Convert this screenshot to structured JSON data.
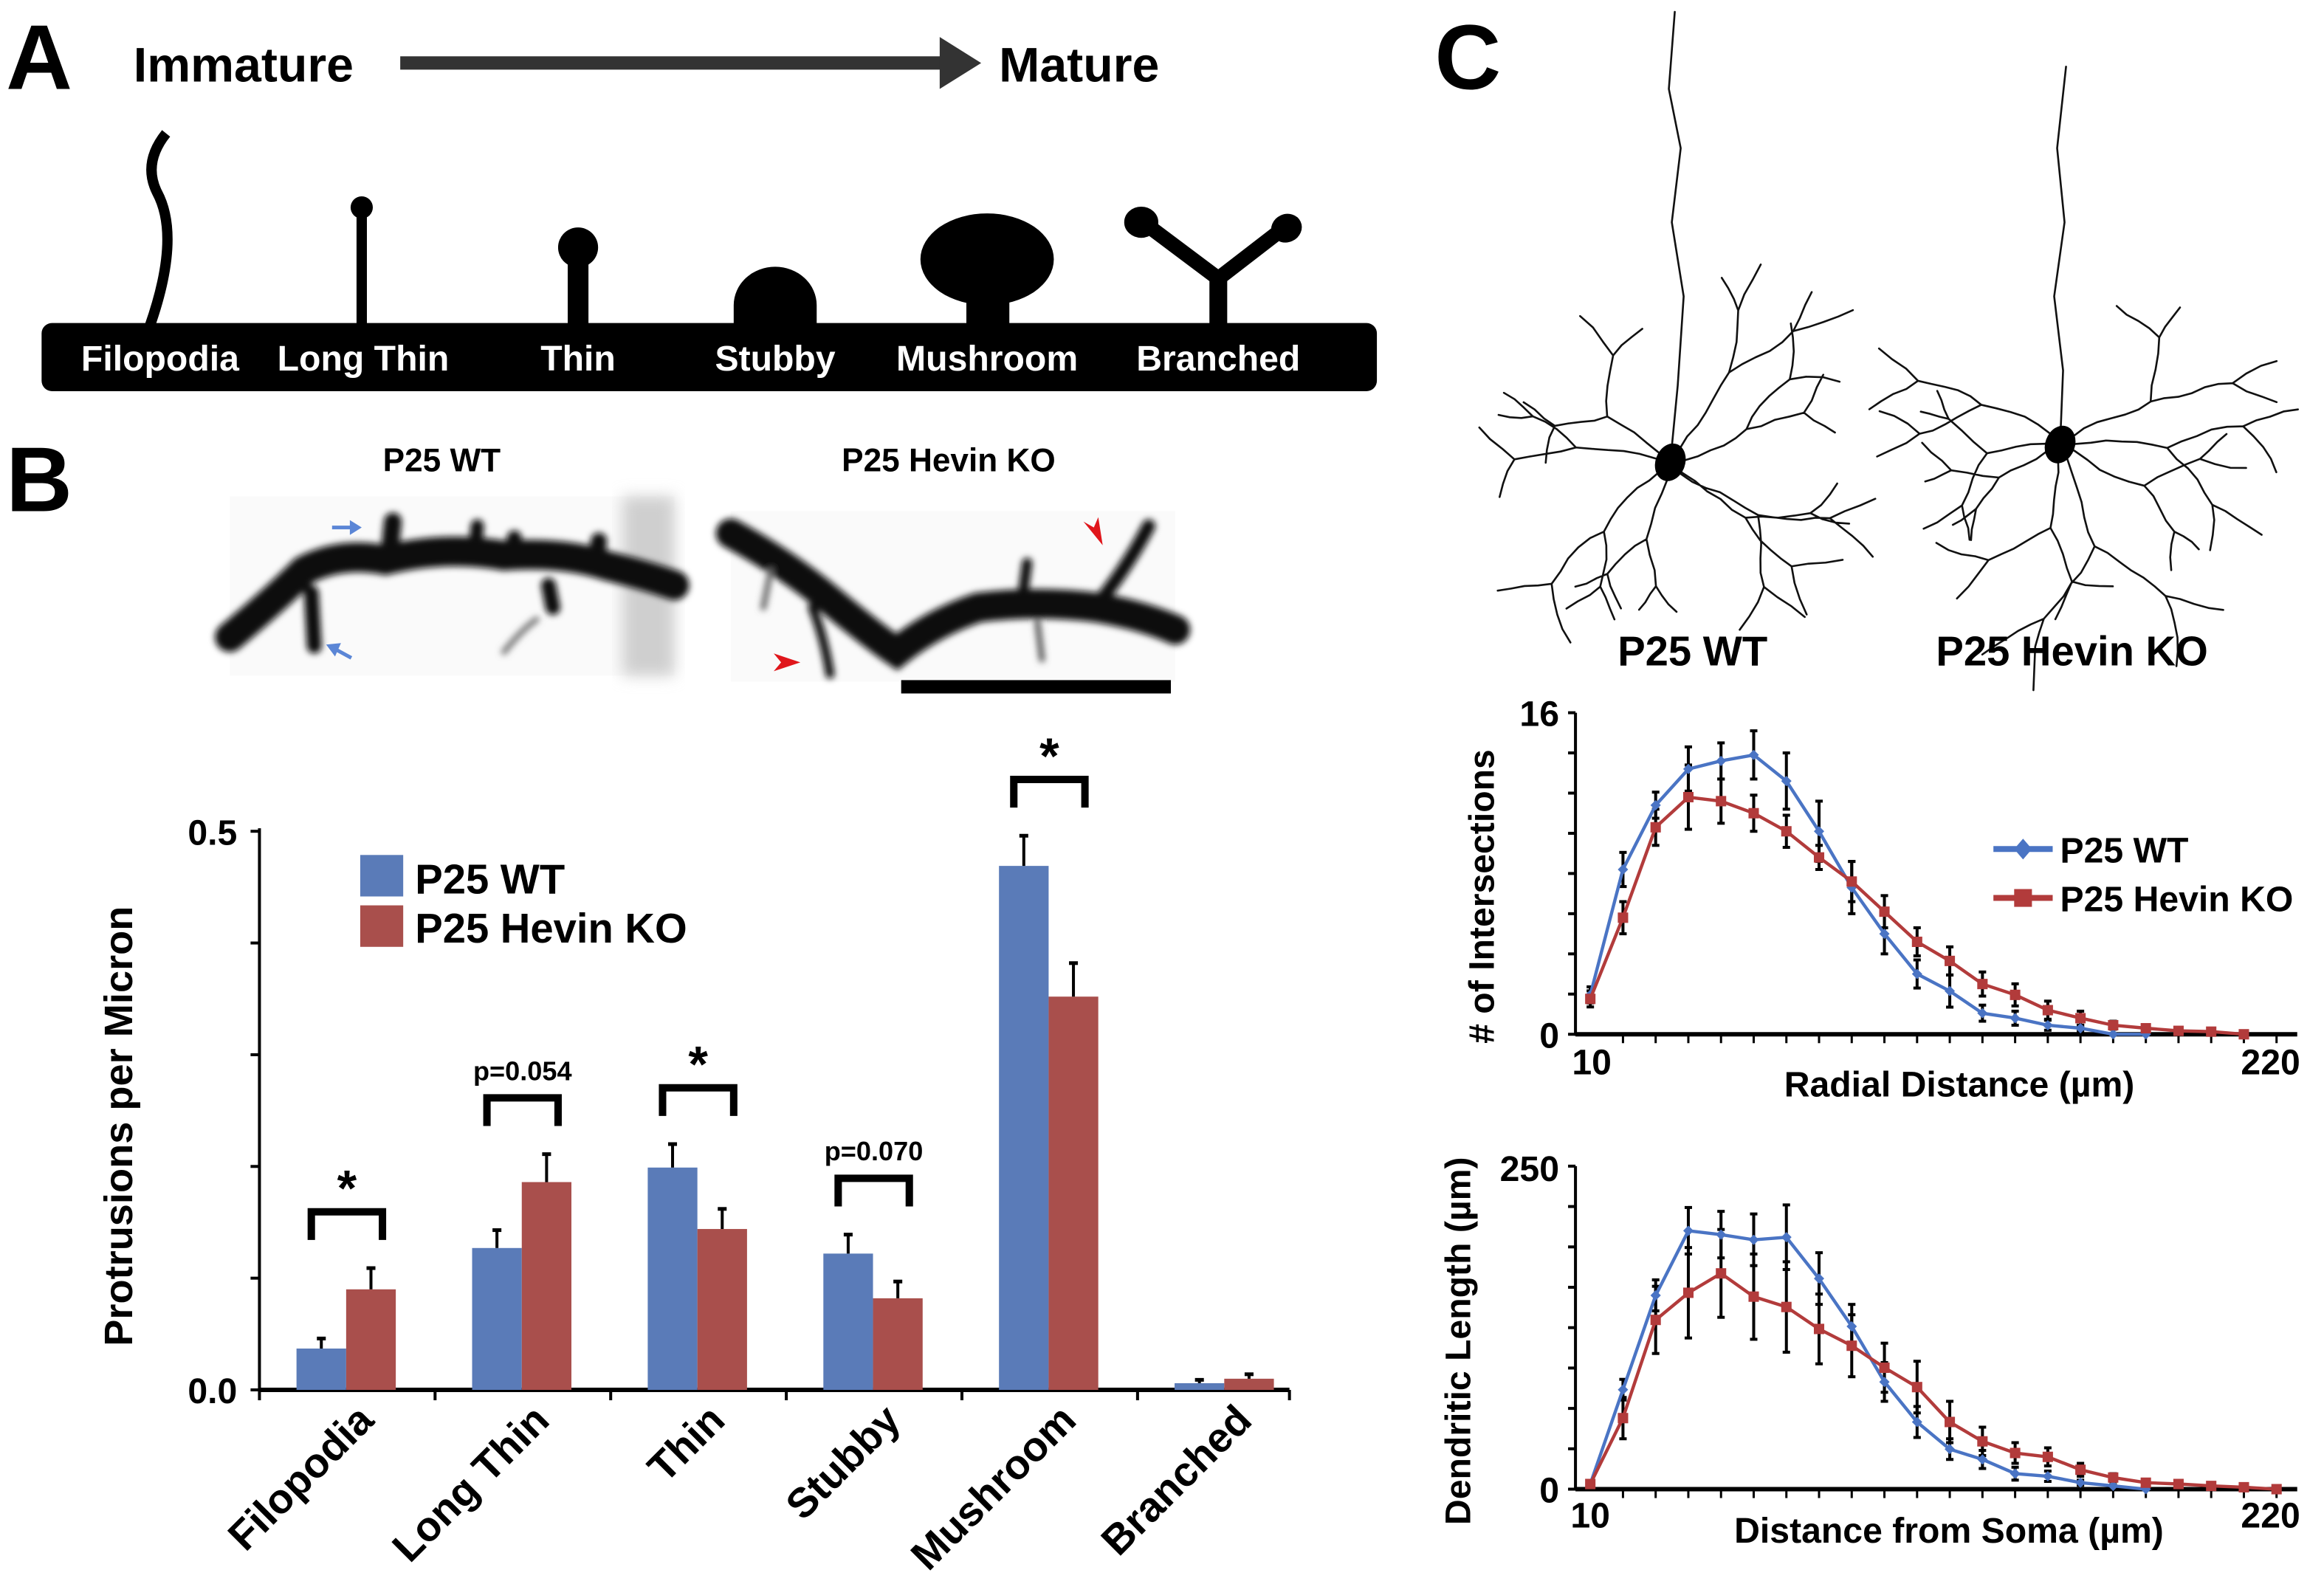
{
  "panel_a": {
    "letter": "A",
    "left_label": "Immature",
    "right_label": "Mature",
    "spine_types": [
      "Filopodia",
      "Long Thin",
      "Thin",
      "Stubby",
      "Mushroom",
      "Branched"
    ]
  },
  "panel_b": {
    "letter": "B",
    "image_titles": [
      "P25 WT",
      "P25 Hevin KO"
    ]
  },
  "panel_c": {
    "letter": "C",
    "neuron_titles": [
      "P25 WT",
      "P25 Hevin KO"
    ]
  },
  "colors": {
    "wt": "#5a7bb8",
    "ko": "#a94f4c",
    "wt_line": "#4a74c4",
    "ko_line": "#b23b3b",
    "arrow_blue": "#5b86d6",
    "arrowhead_red": "#e0161b"
  },
  "chart_data": [
    {
      "type": "bar",
      "ylabel": "Protrusions per Micron",
      "xlabel": "",
      "ylim": [
        0,
        0.5
      ],
      "yticks": [
        0,
        0.1,
        0.2,
        0.3,
        0.4,
        0.5
      ],
      "ytick_labels": [
        "0.0",
        "0.5"
      ],
      "categories": [
        "Filopodia",
        "Long Thin",
        "Thin",
        "Stubby",
        "Mushroom",
        "Branched"
      ],
      "legend_position": "top-left",
      "series": [
        {
          "name": "P25 WT",
          "color": "#5a7bb8",
          "values": [
            0.037,
            0.127,
            0.199,
            0.122,
            0.469,
            0.006
          ],
          "errors": [
            0.009,
            0.016,
            0.021,
            0.017,
            0.027,
            0.003
          ]
        },
        {
          "name": "P25 Hevin KO",
          "color": "#a94f4c",
          "values": [
            0.09,
            0.186,
            0.144,
            0.082,
            0.352,
            0.01
          ],
          "errors": [
            0.019,
            0.025,
            0.018,
            0.015,
            0.03,
            0.004
          ]
        }
      ],
      "annotations": [
        "*",
        "p=0.054",
        "*",
        "p=0.070",
        "*",
        ""
      ]
    },
    {
      "type": "line",
      "ylabel": "# of Intersections",
      "xlabel": "Radial Distance (µm)",
      "ylim": [
        0,
        16
      ],
      "xlim": [
        10,
        220
      ],
      "ytick_labels": [
        "0",
        "16"
      ],
      "xtick_labels": [
        "10",
        "220"
      ],
      "legend_position": "right",
      "series": [
        {
          "name": "P25 WT",
          "color": "#4a74c4",
          "marker": "diamond",
          "x": [
            10,
            20,
            30,
            40,
            50,
            60,
            70,
            80,
            90,
            100,
            110,
            120,
            130,
            140,
            150,
            160,
            170,
            180
          ],
          "y": [
            1.96,
            8.2,
            11.4,
            13.2,
            13.6,
            13.9,
            12.6,
            10.1,
            7.3,
            5.0,
            3.0,
            2.15,
            1.05,
            0.8,
            0.45,
            0.3,
            0,
            0
          ],
          "errors": [
            0.4,
            0.85,
            0.65,
            1.1,
            0.9,
            1.2,
            1.4,
            1.5,
            1.3,
            1.0,
            0.7,
            0.8,
            0.4,
            0.35,
            0.25,
            0.15,
            0,
            0
          ]
        },
        {
          "name": "P25 Hevin KO",
          "color": "#b23b3b",
          "marker": "square",
          "x": [
            10,
            20,
            30,
            40,
            50,
            60,
            70,
            80,
            90,
            100,
            110,
            120,
            130,
            140,
            150,
            160,
            170,
            180,
            190,
            200,
            210
          ],
          "y": [
            1.76,
            5.8,
            10.3,
            11.8,
            11.6,
            11.0,
            10.1,
            8.8,
            7.6,
            6.1,
            4.6,
            3.65,
            2.5,
            1.96,
            1.2,
            0.8,
            0.45,
            0.3,
            0.17,
            0.13,
            0
          ],
          "errors": [
            0.4,
            0.8,
            0.9,
            1.6,
            1.1,
            0.9,
            0.8,
            0.6,
            1.0,
            0.8,
            0.7,
            0.7,
            0.6,
            0.55,
            0.45,
            0.35,
            0.2,
            0.15,
            0.1,
            0.1,
            0
          ]
        }
      ]
    },
    {
      "type": "line",
      "ylabel": "Dendritic Length (µm)",
      "xlabel": "Distance from Soma (µm)",
      "ylim": [
        0,
        250
      ],
      "xlim": [
        10,
        220
      ],
      "ytick_labels": [
        "0",
        "250"
      ],
      "xtick_labels": [
        "10",
        "220"
      ],
      "series": [
        {
          "name": "P25 WT",
          "color": "#4a74c4",
          "marker": "diamond",
          "x": [
            10,
            20,
            30,
            40,
            50,
            60,
            70,
            80,
            90,
            100,
            110,
            120,
            130,
            140,
            150,
            160,
            170,
            180
          ],
          "y": [
            4,
            77,
            150,
            200,
            197,
            193,
            195,
            163,
            126,
            83,
            52,
            31,
            23,
            12,
            10,
            5,
            2.5,
            0
          ],
          "errors": [
            0,
            8,
            12,
            18,
            18,
            20,
            25,
            20,
            17,
            15,
            12,
            8,
            7,
            5,
            4,
            2,
            1,
            0
          ]
        },
        {
          "name": "P25 Hevin KO",
          "color": "#b23b3b",
          "marker": "square",
          "x": [
            10,
            20,
            30,
            40,
            50,
            60,
            70,
            80,
            90,
            100,
            110,
            120,
            130,
            140,
            150,
            160,
            170,
            180,
            190,
            200,
            210,
            220
          ],
          "y": [
            4,
            55,
            131,
            152,
            167,
            149,
            141,
            124,
            111,
            94,
            79,
            52,
            37,
            28,
            25,
            15,
            9,
            5,
            4,
            2.5,
            1.5,
            0
          ],
          "errors": [
            0,
            16,
            26,
            35,
            34,
            33,
            35,
            27,
            24,
            19,
            20,
            16,
            11,
            8,
            7,
            5,
            3,
            1,
            1,
            1,
            0.5,
            0
          ]
        }
      ]
    }
  ]
}
